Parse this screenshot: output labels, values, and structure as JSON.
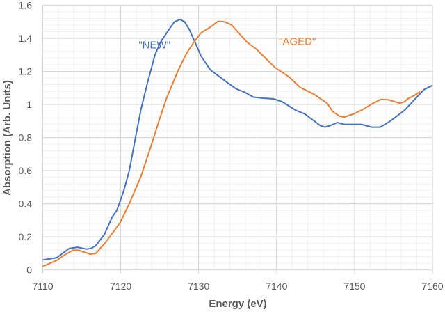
{
  "chart_data": {
    "type": "line",
    "title": "",
    "xlabel": "Energy (eV)",
    "ylabel": "Absorption (Arb. Units)",
    "xlim": [
      7110,
      7160
    ],
    "ylim": [
      0,
      1.6
    ],
    "xticks": [
      7110,
      7120,
      7130,
      7140,
      7150,
      7160
    ],
    "yticks": [
      0,
      0.2,
      0.4,
      0.6,
      0.8,
      1,
      1.2,
      1.4,
      1.6
    ],
    "xtick_labels": [
      "7110",
      "7120",
      "7130",
      "7140",
      "7150",
      "7160"
    ],
    "ytick_labels": [
      "0",
      "0.2",
      "0.4",
      "0.6",
      "0.8",
      "1",
      "1.2",
      "1.4",
      "1.6"
    ],
    "grid": true,
    "minor_grid": true,
    "series": [
      {
        "name": "\"NEW\"",
        "color": "#4472C4",
        "x": [
          7110,
          7111.8,
          7113.4,
          7114.5,
          7115.6,
          7116.2,
          7116.8,
          7117.9,
          7118.9,
          7119.5,
          7120.4,
          7121.1,
          7121.9,
          7122.6,
          7123.4,
          7124.4,
          7125.1,
          7126.2,
          7126.9,
          7127.6,
          7128.2,
          7128.8,
          7129.6,
          7130.3,
          7131.5,
          7133.3,
          7134.8,
          7136.0,
          7137.0,
          7138.3,
          7139.6,
          7140.7,
          7142.5,
          7143.6,
          7144.5,
          7145.6,
          7146.2,
          7146.9,
          7147.8,
          7148.7,
          7150.9,
          7152.2,
          7153.3,
          7154.6,
          7156.4,
          7157.9,
          7158.9,
          7160
        ],
        "y": [
          0.06,
          0.074,
          0.13,
          0.137,
          0.126,
          0.13,
          0.147,
          0.214,
          0.32,
          0.36,
          0.48,
          0.6,
          0.8,
          0.97,
          1.125,
          1.3,
          1.377,
          1.454,
          1.5,
          1.514,
          1.5,
          1.454,
          1.37,
          1.293,
          1.209,
          1.146,
          1.095,
          1.072,
          1.045,
          1.038,
          1.034,
          1.017,
          0.964,
          0.943,
          0.912,
          0.873,
          0.863,
          0.873,
          0.891,
          0.88,
          0.88,
          0.863,
          0.863,
          0.9,
          0.964,
          1.04,
          1.09,
          1.115
        ]
      },
      {
        "name": "\"AGED\"",
        "color": "#ED7D31",
        "x": [
          7110,
          7111.8,
          7112.8,
          7113.9,
          7114.6,
          7116.1,
          7116.8,
          7117.9,
          7118.8,
          7119.9,
          7121.0,
          7122.6,
          7124.1,
          7125.0,
          7125.9,
          7127.4,
          7128.5,
          7129.4,
          7130.3,
          7131.5,
          7132.5,
          7133.3,
          7134.2,
          7135.0,
          7136.2,
          7137.4,
          7138.6,
          7139.8,
          7141.6,
          7143.0,
          7144.8,
          7146.5,
          7147.2,
          7148.1,
          7148.7,
          7149.9,
          7151.0,
          7152.2,
          7153.4,
          7154.3,
          7155.8,
          7156.4,
          7156.8,
          7157.7,
          7158.4
        ],
        "y": [
          0.021,
          0.058,
          0.091,
          0.12,
          0.119,
          0.095,
          0.1,
          0.158,
          0.214,
          0.284,
          0.39,
          0.565,
          0.78,
          0.915,
          1.04,
          1.21,
          1.314,
          1.377,
          1.433,
          1.468,
          1.503,
          1.5,
          1.482,
          1.44,
          1.377,
          1.335,
          1.279,
          1.223,
          1.167,
          1.104,
          1.062,
          1.006,
          0.957,
          0.929,
          0.924,
          0.943,
          0.968,
          1.003,
          1.031,
          1.029,
          1.008,
          1.016,
          1.034,
          1.055,
          1.078
        ]
      }
    ],
    "annotations": [
      {
        "text": "\"NEW\"",
        "x": 7122.3,
        "y": 1.34,
        "color": "#4472C4"
      },
      {
        "text": "\"AGED\"",
        "x": 7140.3,
        "y": 1.36,
        "color": "#ED7D31"
      }
    ]
  }
}
